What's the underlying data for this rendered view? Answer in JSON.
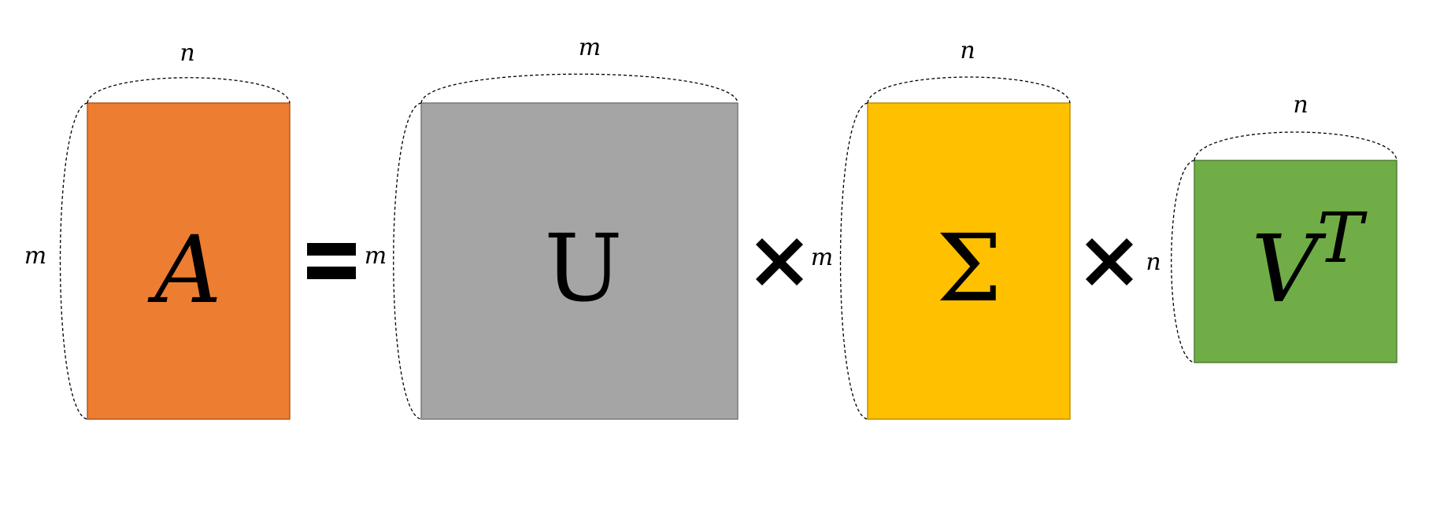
{
  "matrices": {
    "A": {
      "symbol": "A",
      "rows_label": "m",
      "cols_label": "n",
      "fill": "#ED7D31",
      "stroke": "#AE5A21"
    },
    "U": {
      "symbol": "U",
      "rows_label": "m",
      "cols_label": "m",
      "fill": "#A5A5A5",
      "stroke": "#787878"
    },
    "Sigma": {
      "symbol": "Σ",
      "rows_label": "m",
      "cols_label": "n",
      "fill": "#FFC000",
      "stroke": "#BF9000"
    },
    "Vt": {
      "symbol": "V",
      "superscript": "T",
      "rows_label": "n",
      "cols_label": "n",
      "fill": "#70AD47",
      "stroke": "#507E32"
    }
  },
  "operators": {
    "equals": "equals-sign",
    "times_1": "multiply-sign",
    "times_2": "multiply-sign"
  }
}
